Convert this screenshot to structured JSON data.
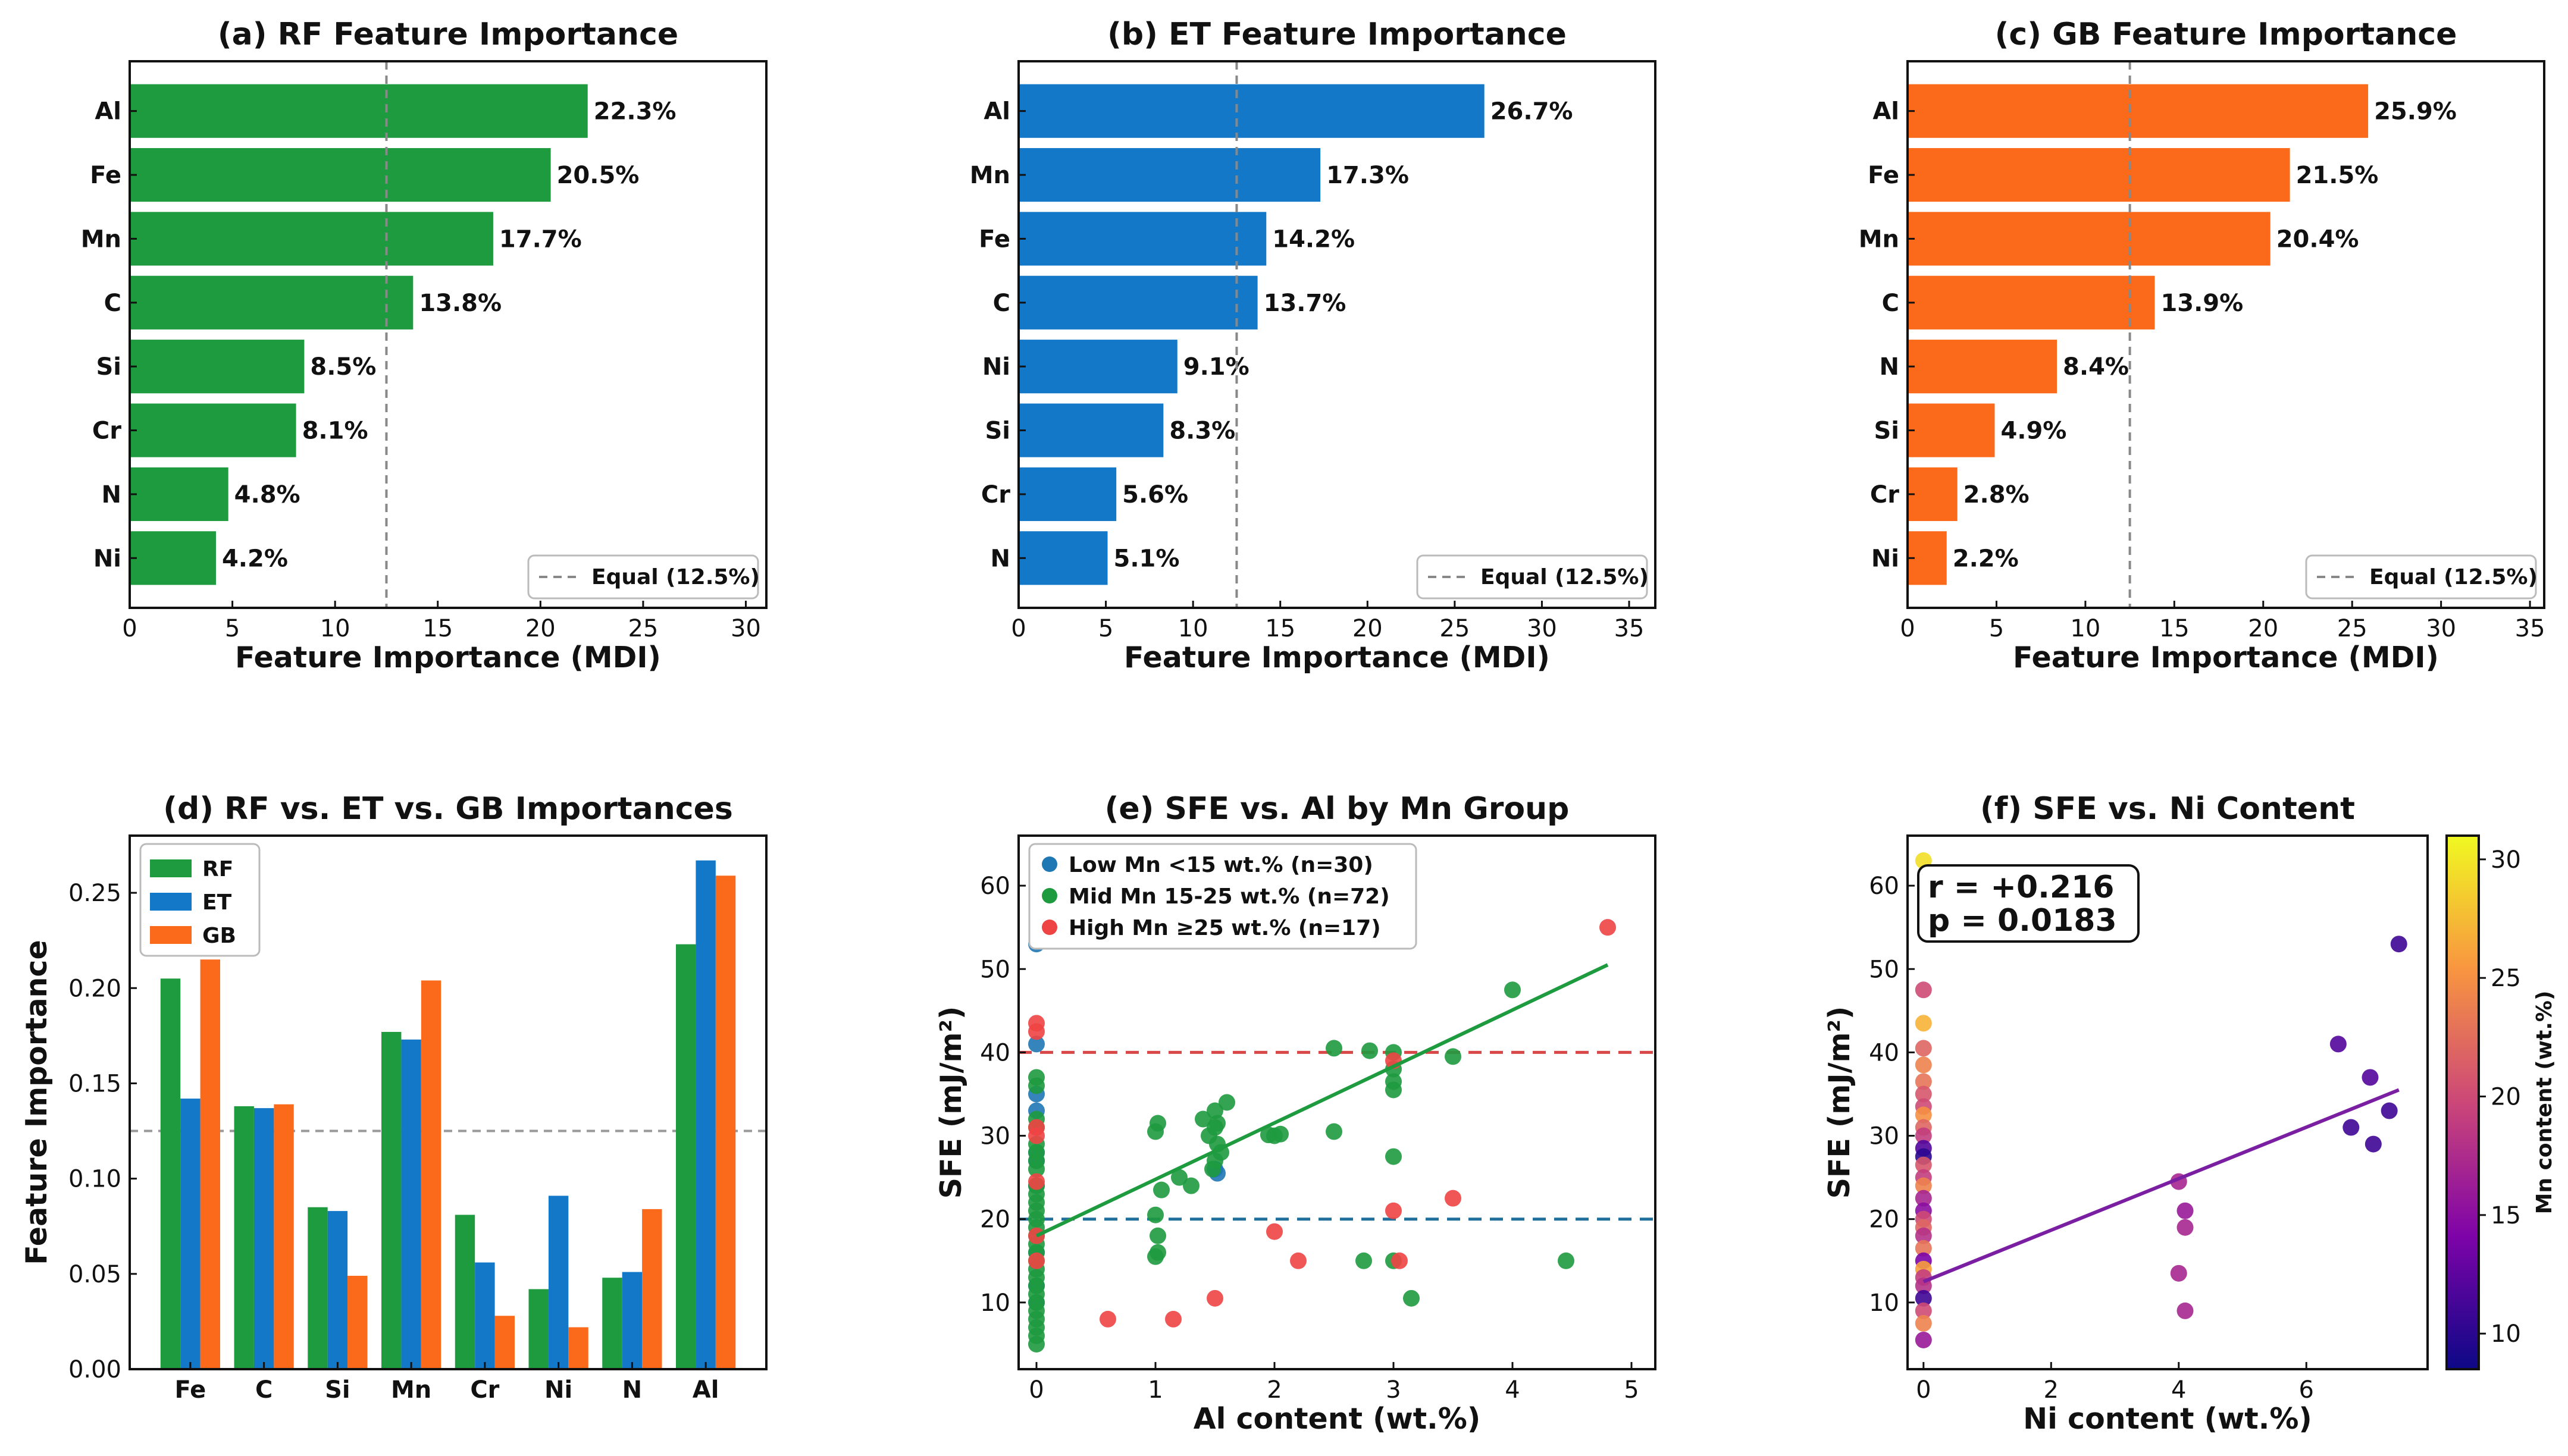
{
  "colors": {
    "rf": "#1e9a3f",
    "et": "#1478c8",
    "gb": "#fa6a1a",
    "low": "#1f77b4",
    "mid": "#1e9a3f",
    "high": "#ef4444",
    "ref_red": "#d94848",
    "ref_blue": "#1f6f9a",
    "fit_green": "#1e9a3f",
    "fit_purple": "#7a1fa2"
  },
  "chart_data": [
    {
      "type": "bar",
      "orientation": "horizontal",
      "panel": "a",
      "title": "(a) RF Feature Importance",
      "xlabel": "Feature Importance (MDI)",
      "xlim": [
        0,
        31
      ],
      "xticks": [
        0,
        5,
        10,
        15,
        20,
        25,
        30
      ],
      "categories": [
        "Al",
        "Fe",
        "Mn",
        "C",
        "Si",
        "Cr",
        "N",
        "Ni"
      ],
      "values": [
        22.3,
        20.5,
        17.7,
        13.8,
        8.5,
        8.1,
        4.8,
        4.2
      ],
      "labels": [
        "22.3%",
        "20.5%",
        "17.7%",
        "13.8%",
        "8.5%",
        "8.1%",
        "4.8%",
        "4.2%"
      ],
      "reference": {
        "value": 12.5,
        "label": "Equal (12.5%)"
      },
      "legend": "bottom-right",
      "color": "rf"
    },
    {
      "type": "bar",
      "orientation": "horizontal",
      "panel": "b",
      "title": "(b) ET Feature Importance",
      "xlabel": "Feature Importance (MDI)",
      "xlim": [
        0,
        36.5
      ],
      "xticks": [
        0,
        5,
        10,
        15,
        20,
        25,
        30,
        35
      ],
      "categories": [
        "Al",
        "Mn",
        "Fe",
        "C",
        "Ni",
        "Si",
        "Cr",
        "N"
      ],
      "values": [
        26.7,
        17.3,
        14.2,
        13.7,
        9.1,
        8.3,
        5.6,
        5.1
      ],
      "labels": [
        "26.7%",
        "17.3%",
        "14.2%",
        "13.7%",
        "9.1%",
        "8.3%",
        "5.6%",
        "5.1%"
      ],
      "reference": {
        "value": 12.5,
        "label": "Equal (12.5%)"
      },
      "legend": "bottom-right",
      "color": "et"
    },
    {
      "type": "bar",
      "orientation": "horizontal",
      "panel": "c",
      "title": "(c) GB Feature Importance",
      "xlabel": "Feature Importance (MDI)",
      "xlim": [
        0,
        35.8
      ],
      "xticks": [
        0,
        5,
        10,
        15,
        20,
        25,
        30,
        35
      ],
      "categories": [
        "Al",
        "Fe",
        "Mn",
        "C",
        "N",
        "Si",
        "Cr",
        "Ni"
      ],
      "values": [
        25.9,
        21.5,
        20.4,
        13.9,
        8.4,
        4.9,
        2.8,
        2.2
      ],
      "labels": [
        "25.9%",
        "21.5%",
        "20.4%",
        "13.9%",
        "8.4%",
        "4.9%",
        "2.8%",
        "2.2%"
      ],
      "reference": {
        "value": 12.5,
        "label": "Equal (12.5%)"
      },
      "legend": "bottom-right",
      "color": "gb"
    },
    {
      "type": "bar",
      "orientation": "vertical",
      "panel": "d",
      "title": "(d) RF vs. ET vs. GB Importances",
      "ylabel": "Feature Importance",
      "ylim": [
        0,
        0.28
      ],
      "yticks": [
        "0.00",
        "0.05",
        "0.10",
        "0.15",
        "0.20",
        "0.25"
      ],
      "categories": [
        "Fe",
        "C",
        "Si",
        "Mn",
        "Cr",
        "Ni",
        "N",
        "Al"
      ],
      "series": [
        {
          "name": "RF",
          "values": [
            0.205,
            0.138,
            0.085,
            0.177,
            0.081,
            0.042,
            0.048,
            0.223
          ]
        },
        {
          "name": "ET",
          "values": [
            0.142,
            0.137,
            0.083,
            0.173,
            0.056,
            0.091,
            0.051,
            0.267
          ]
        },
        {
          "name": "GB",
          "values": [
            0.215,
            0.139,
            0.049,
            0.204,
            0.028,
            0.022,
            0.084,
            0.259
          ]
        }
      ],
      "reference": {
        "value": 0.125
      },
      "legend": "top-left"
    },
    {
      "type": "scatter",
      "panel": "e",
      "title": "(e) SFE vs. Al by Mn Group",
      "xlabel": "Al content (wt.%)",
      "ylabel": "SFE (mJ/m²)",
      "xlim": [
        -0.15,
        5.2
      ],
      "ylim": [
        2,
        66
      ],
      "xticks": [
        0,
        1,
        2,
        3,
        4,
        5
      ],
      "yticks": [
        10,
        20,
        30,
        40,
        50,
        60
      ],
      "series": [
        {
          "name": "Low Mn <15 wt.% (n=30)",
          "color": "low",
          "x": [
            0,
            0,
            0,
            0,
            0,
            0,
            0,
            0,
            0,
            1.5,
            1.52,
            0
          ],
          "y": [
            53,
            41,
            33,
            28,
            27,
            24,
            16,
            12,
            10,
            26,
            25.5,
            35
          ]
        },
        {
          "name": "Mid Mn 15-25 wt.% (n=72)",
          "color": "mid",
          "x": [
            0,
            0,
            0,
            0,
            0,
            0,
            0,
            0,
            0,
            0,
            0,
            0,
            0,
            0,
            0,
            0,
            0,
            0,
            0,
            0,
            0,
            0,
            0,
            0,
            0,
            0,
            0,
            0,
            1.0,
            1.02,
            1.05,
            1.0,
            1.02,
            1.2,
            1.4,
            1.45,
            1.5,
            1.52,
            1.55,
            1.5,
            1.48,
            1.6,
            1.5,
            1.52,
            2.0,
            2.05,
            1.95,
            2.5,
            2.5,
            2.8,
            3.0,
            3.0,
            3.0,
            3.0,
            3.0,
            3.5,
            4.0,
            2.75,
            3.0,
            3.15,
            4.45,
            1.0,
            1.02,
            1.3
          ],
          "y": [
            37,
            36,
            32,
            31,
            29,
            28,
            26,
            24,
            23,
            22,
            21,
            20,
            19,
            18,
            17,
            16,
            15,
            14,
            13,
            12,
            11,
            10,
            9,
            8,
            7,
            6,
            5,
            27,
            30.5,
            31.5,
            23.5,
            20.5,
            18,
            25,
            32,
            30,
            31,
            29,
            28,
            27,
            26,
            34,
            33,
            31.5,
            30,
            30.2,
            30.1,
            30.5,
            40.5,
            40.2,
            40,
            38,
            36.5,
            35.5,
            27.5,
            39.5,
            47.5,
            15,
            15,
            10.5,
            15,
            15.5,
            16,
            24
          ]
        },
        {
          "name": "High Mn ≥25 wt.% (n=17)",
          "color": "high",
          "x": [
            0,
            0,
            0,
            0,
            0,
            0,
            0,
            0.6,
            1.15,
            1.5,
            2.0,
            2.2,
            3.0,
            3.0,
            3.05,
            3.5,
            4.8
          ],
          "y": [
            43.5,
            42.5,
            31,
            30,
            24.5,
            18,
            15,
            8,
            8,
            10.5,
            18.5,
            15,
            39,
            21,
            15,
            22.5,
            55
          ]
        }
      ],
      "fit": {
        "x": [
          0,
          4.8
        ],
        "y": [
          18,
          50.5
        ]
      },
      "reference_lines": [
        {
          "y": 40,
          "color": "ref_red"
        },
        {
          "y": 20,
          "color": "ref_blue"
        }
      ],
      "legend": "top-left"
    },
    {
      "type": "scatter",
      "panel": "f",
      "title": "(f) SFE vs. Ni Content",
      "xlabel": "Ni content (wt.%)",
      "ylabel": "SFE (mJ/m²)",
      "xlim": [
        -0.25,
        7.9
      ],
      "ylim": [
        2,
        66
      ],
      "xticks": [
        0,
        2,
        4,
        6
      ],
      "yticks": [
        10,
        20,
        30,
        40,
        50,
        60
      ],
      "points": {
        "x": [
          0,
          0,
          0,
          0,
          0,
          0,
          0,
          0,
          0,
          0,
          0,
          0,
          0,
          0,
          0,
          0,
          0,
          0,
          0,
          0,
          0,
          0,
          0,
          0,
          0,
          0,
          0,
          0,
          0,
          0,
          4.0,
          4.1,
          4.1,
          4.0,
          4.1,
          6.5,
          6.7,
          7.0,
          7.05,
          7.3,
          7.45
        ],
        "y": [
          63,
          47.5,
          43.5,
          40.5,
          38.5,
          36.5,
          35,
          33.5,
          32.5,
          31,
          30,
          28.5,
          27.5,
          26.5,
          25,
          24,
          22.5,
          21,
          20,
          19,
          18,
          16.5,
          15,
          14,
          13,
          12,
          10.5,
          9,
          7.5,
          5.5,
          24.5,
          21,
          19,
          13.5,
          9,
          41,
          31,
          37,
          29,
          33,
          53
        ],
        "mn": [
          29.5,
          20,
          27,
          22,
          24,
          23,
          21,
          20,
          25,
          22,
          19,
          12,
          10,
          21,
          19,
          24,
          17,
          15,
          20,
          22,
          18,
          23,
          14,
          26,
          19,
          18,
          11,
          20,
          24,
          16,
          17,
          16,
          17,
          17,
          17,
          12,
          11,
          12,
          11,
          11,
          11
        ]
      },
      "fit": {
        "x": [
          0,
          7.45
        ],
        "y": [
          12.5,
          35.5
        ]
      },
      "stats": {
        "r": "r = +0.216",
        "p": "p = 0.0183"
      },
      "colorbar": {
        "label": "Mn content (wt.%)",
        "range": [
          8.5,
          31
        ],
        "ticks": [
          10,
          15,
          20,
          25,
          30
        ]
      }
    }
  ]
}
